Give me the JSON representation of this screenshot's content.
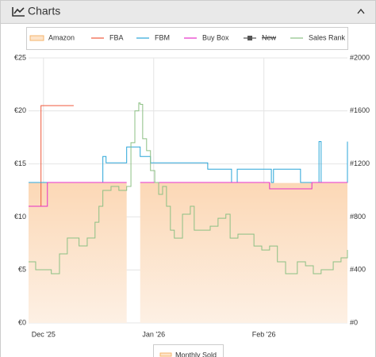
{
  "header": {
    "title": "Charts"
  },
  "chart_data": {
    "type": "line",
    "step": true,
    "grid": true,
    "xlim": [
      -4.2,
      85.5
    ],
    "xticks": [
      {
        "value": 0,
        "label": "Dec '25"
      },
      {
        "value": 31,
        "label": "Jan '26"
      },
      {
        "value": 62,
        "label": "Feb '26"
      }
    ],
    "ylim": [
      0,
      25
    ],
    "yticks": [
      {
        "value": 0,
        "label": "€0"
      },
      {
        "value": 5,
        "label": "€5"
      },
      {
        "value": 10,
        "label": "€10"
      },
      {
        "value": 15,
        "label": "€15"
      },
      {
        "value": 20,
        "label": "€20"
      },
      {
        "value": 25,
        "label": "€25"
      }
    ],
    "y2lim": [
      0,
      2000
    ],
    "y2ticks": [
      {
        "value": 0,
        "label": "#0"
      },
      {
        "value": 400,
        "label": "#400"
      },
      {
        "value": 800,
        "label": "#800"
      },
      {
        "value": 1200,
        "label": "#1200"
      },
      {
        "value": 1600,
        "label": "#1600"
      },
      {
        "value": 2000,
        "label": "#2000"
      }
    ],
    "series": [
      {
        "name": "Amazon",
        "color": "#f5b66e",
        "area": true,
        "x": [
          -4.2,
          23.4,
          25.0,
          27.2,
          85.5
        ],
        "values": [
          13.2,
          13.2,
          null,
          13.2,
          13.2
        ]
      },
      {
        "name": "FBA",
        "color": "#f05a3c",
        "x": [
          -4.2,
          -0.7,
          8.5
        ],
        "values": [
          11,
          20.5,
          20.5
        ]
      },
      {
        "name": "FBM",
        "color": "#2aa6d8",
        "x": [
          -4.2,
          16.7,
          17.6,
          23.4,
          27.2,
          30.1,
          46.2,
          52.9,
          54.5,
          64.1,
          64.7,
          72.3,
          77.5,
          78.1,
          85.5
        ],
        "values": [
          13.25,
          15.7,
          15.1,
          16.6,
          15.7,
          15.1,
          14.5,
          13.25,
          14.5,
          13.25,
          14.5,
          13.25,
          17.1,
          13.25,
          17.1
        ]
      },
      {
        "name": "Buy Box",
        "color": "#e62ec8",
        "x": [
          -4.2,
          1.1,
          23.4,
          25.0,
          27.2,
          63.6,
          75.5,
          85.5
        ],
        "values": [
          11,
          13.25,
          13.25,
          null,
          13.25,
          12.65,
          13.25,
          13.25
        ]
      },
      {
        "name": "New",
        "color": "#555555",
        "hidden": true,
        "x": [],
        "values": []
      },
      {
        "name": "Sales Rank",
        "color": "#8cc084",
        "axis": "y2",
        "x": [
          -4.2,
          -2.2,
          1.1,
          2.2,
          4.5,
          6.7,
          8.9,
          10.0,
          12.3,
          14.5,
          15.6,
          16.7,
          19.0,
          21.2,
          23.4,
          24.6,
          25.7,
          26.8,
          27.2,
          27.9,
          29.0,
          30.1,
          31.3,
          32.4,
          33.5,
          34.6,
          35.7,
          36.8,
          39.1,
          41.3,
          42.4,
          44.6,
          46.9,
          49.1,
          51.3,
          52.5,
          54.7,
          56.9,
          59.2,
          61.4,
          63.6,
          65.8,
          68.1,
          71.4,
          73.7,
          75.9,
          78.1,
          81.5,
          83.7,
          85.5
        ],
        "values": [
          461,
          401,
          401,
          371,
          521,
          641,
          641,
          581,
          641,
          760,
          880,
          1000,
          1030,
          1000,
          1030,
          1360,
          1600,
          1660,
          1650,
          1390,
          1300,
          1150,
          1060,
          970,
          1030,
          880,
          700,
          640,
          820,
          880,
          700,
          700,
          730,
          790,
          820,
          640,
          670,
          670,
          580,
          550,
          580,
          461,
          371,
          461,
          431,
          371,
          401,
          461,
          491,
          551
        ]
      }
    ],
    "secondary_legend": [
      "Monthly Sold"
    ]
  }
}
